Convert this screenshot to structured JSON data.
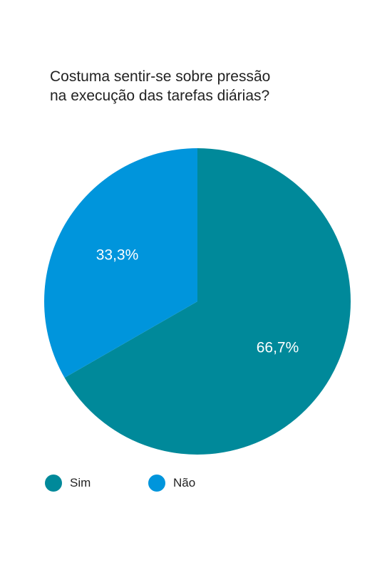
{
  "chart_data": {
    "type": "pie",
    "title": "Costuma sentir-se sobre pressão\nna execução das tarefas diárias?",
    "categories": [
      "Sim",
      "Não"
    ],
    "values": [
      66.7,
      33.3
    ],
    "value_labels": [
      "66,7%",
      "33,3%"
    ],
    "colors": [
      "#00899a",
      "#0095dc"
    ],
    "start_angle_deg": 0,
    "direction": "clockwise",
    "legend": {
      "position": "bottom-left",
      "items": [
        {
          "label": "Sim",
          "color": "#00899a"
        },
        {
          "label": "Não",
          "color": "#0095dc"
        }
      ]
    }
  }
}
